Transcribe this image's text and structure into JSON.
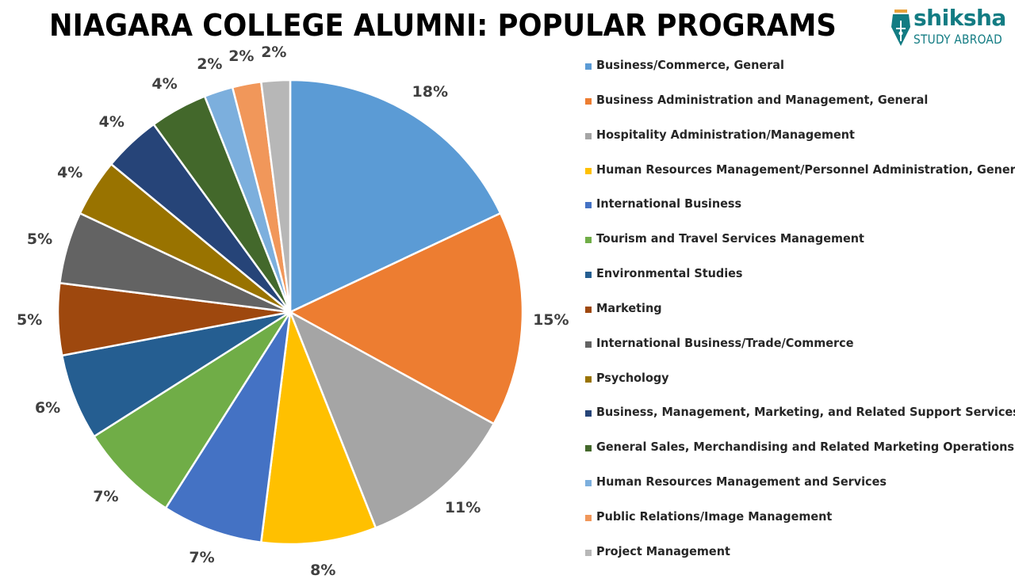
{
  "header": {
    "title": "NIAGARA COLLEGE ALUMNI: POPULAR PROGRAMS"
  },
  "logo": {
    "brand": "shiksha",
    "tagline": "STUDY ABROAD",
    "icon": "pen-nib-icon",
    "color": "#137c83"
  },
  "chart_data": {
    "type": "pie",
    "title": "NIAGARA COLLEGE ALUMNI: POPULAR PROGRAMS",
    "categories": [
      "Business/Commerce, General",
      "Business Administration and Management, General",
      "Hospitality Administration/Management",
      "Human Resources Management/Personnel Administration, General",
      "International Business",
      "Tourism and Travel Services Management",
      "Environmental Studies",
      "Marketing",
      "International Business/Trade/Commerce",
      "Psychology",
      "Business, Management, Marketing, and Related Support Services",
      "General Sales, Merchandising and Related Marketing Operations",
      "Human Resources Management and Services",
      "Public Relations/Image Management",
      "Project Management"
    ],
    "values": [
      18,
      15,
      11,
      8,
      7,
      7,
      6,
      5,
      5,
      4,
      4,
      4,
      2,
      2,
      2
    ],
    "labels": [
      "18%",
      "15%",
      "11%",
      "8%",
      "7%",
      "7%",
      "6%",
      "5%",
      "5%",
      "4%",
      "4%",
      "4%",
      "2%",
      "2%",
      "2%"
    ],
    "colors": [
      "#5b9bd5",
      "#ed7d31",
      "#a5a5a5",
      "#ffc000",
      "#4472c4",
      "#70ad47",
      "#255e91",
      "#9e480e",
      "#636363",
      "#997300",
      "#264478",
      "#43682b",
      "#7cafdd",
      "#f1975a",
      "#b7b7b7"
    ],
    "legend_position": "right",
    "start_angle": "12 o'clock, clockwise",
    "data_labels": "percent outside end"
  }
}
